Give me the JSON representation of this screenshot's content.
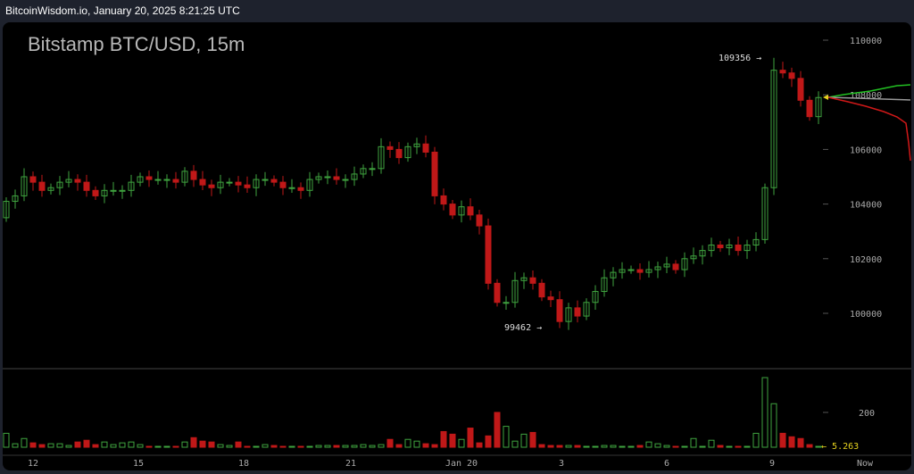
{
  "header": {
    "text": "BitcoinWisdom.io, January 20, 2025 8:21:25 UTC"
  },
  "chart_data": {
    "type": "candlestick",
    "title": "Bitstamp BTC/USD, 15m",
    "colors": {
      "up": "#3fa33f",
      "down": "#c01818",
      "forecast_high": "#22c022",
      "forecast_mid": "#999999",
      "forecast_low": "#d01818",
      "last_marker": "#e6d21e"
    },
    "price_ticks": [
      110000,
      108000,
      106000,
      104000,
      102000,
      100000
    ],
    "ylim": [
      99000,
      111000
    ],
    "volume_ticks": [
      200
    ],
    "x_ticks": [
      "12",
      "15",
      "18",
      "21",
      "Jan 20",
      "3",
      "6",
      "9",
      "Now"
    ],
    "annotations": {
      "high": "109356",
      "low": "99462",
      "last_volume": "5.263"
    },
    "open0": 103500,
    "close": [
      104100,
      104300,
      105000,
      104800,
      104500,
      104600,
      104800,
      104900,
      104800,
      104500,
      104300,
      104500,
      104500,
      104500,
      104800,
      105000,
      104900,
      104900,
      104900,
      104800,
      105200,
      104900,
      104700,
      104600,
      104800,
      104800,
      104700,
      104600,
      104900,
      104900,
      104800,
      104600,
      104600,
      104500,
      104900,
      105000,
      105000,
      104900,
      104900,
      105100,
      105300,
      105300,
      106100,
      106000,
      105700,
      106100,
      106200,
      105900,
      104300,
      104000,
      103600,
      103900,
      103600,
      103200,
      101100,
      100400,
      100400,
      101200,
      101300,
      101100,
      100600,
      100500,
      99700,
      100200,
      99900,
      100400,
      100800,
      101300,
      101500,
      101600,
      101600,
      101500,
      101600,
      101700,
      101800,
      101600,
      102000,
      102100,
      102300,
      102500,
      102400,
      102500,
      102300,
      102500,
      102700,
      104600,
      108900,
      108800,
      108600,
      107800,
      107200,
      107900
    ],
    "volume": [
      80,
      20,
      50,
      25,
      15,
      20,
      20,
      10,
      30,
      40,
      15,
      30,
      15,
      25,
      30,
      15,
      5,
      5,
      5,
      5,
      30,
      55,
      35,
      30,
      15,
      10,
      30,
      5,
      5,
      15,
      10,
      5,
      5,
      5,
      5,
      10,
      10,
      10,
      10,
      10,
      15,
      10,
      15,
      45,
      15,
      45,
      35,
      20,
      15,
      90,
      75,
      45,
      110,
      25,
      65,
      200,
      120,
      35,
      75,
      85,
      15,
      10,
      10,
      10,
      10,
      5,
      5,
      10,
      10,
      5,
      5,
      10,
      30,
      20,
      10,
      5,
      5,
      50,
      5,
      40,
      10,
      5,
      5,
      5,
      80,
      400,
      250,
      80,
      60,
      50,
      15,
      5
    ]
  }
}
